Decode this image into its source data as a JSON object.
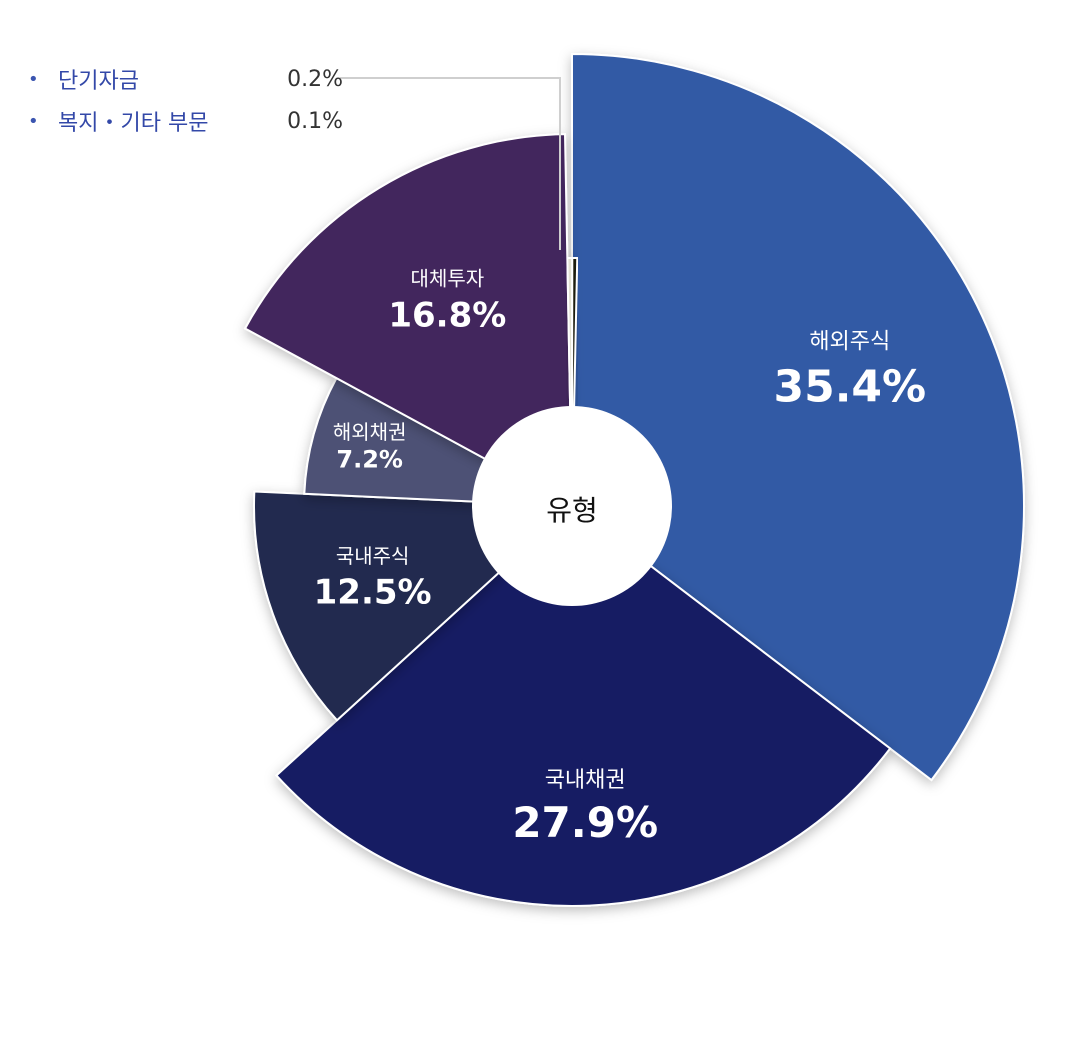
{
  "chart_data": {
    "type": "pie",
    "center_label": "유형",
    "slices": [
      {
        "label": "해외주식",
        "value": 35.4,
        "display": "35.4%",
        "color": "#335aa5"
      },
      {
        "label": "국내채권",
        "value": 27.9,
        "display": "27.9%",
        "color": "#161d63"
      },
      {
        "label": "국내주식",
        "value": 12.5,
        "display": "12.5%",
        "color": "#212a50"
      },
      {
        "label": "해외채권",
        "value": 7.2,
        "display": "7.2%",
        "color": "#4e5175"
      },
      {
        "label": "대체투자",
        "value": 16.8,
        "display": "16.8%",
        "color": "#43255d"
      },
      {
        "label": "단기자금",
        "value": 0.2,
        "display": "0.2%",
        "color": "#e2e1d2"
      },
      {
        "label": "복지・기타 부문",
        "value": 0.1,
        "display": "0.1%",
        "color": "#1d1d10"
      }
    ],
    "small_legend": [
      {
        "label": "단기자금",
        "display": "0.2%"
      },
      {
        "label": "복지・기타 부문",
        "display": "0.1%"
      }
    ]
  }
}
